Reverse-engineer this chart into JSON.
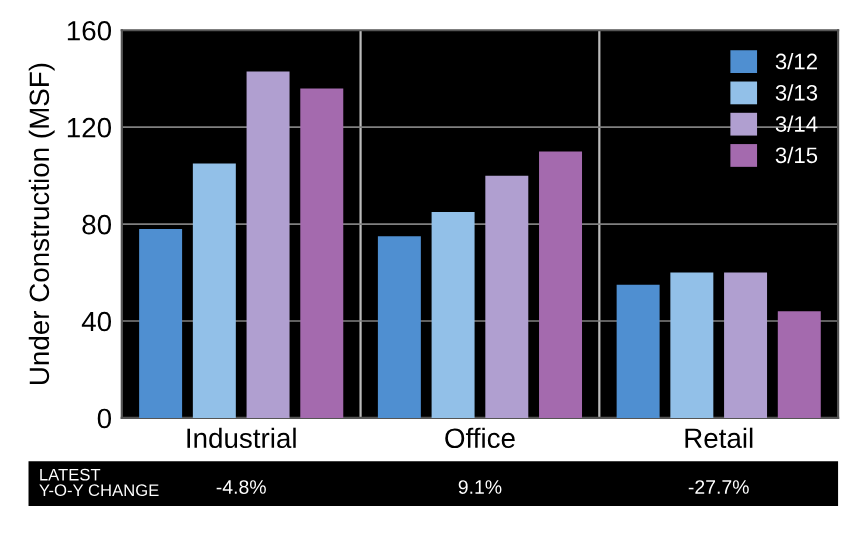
{
  "chart_data": {
    "type": "bar",
    "ylabel": "Under Construction (MSF)",
    "categories": [
      "Industrial",
      "Office",
      "Retail"
    ],
    "series": [
      {
        "name": "3/12",
        "color": "#4f8fd1",
        "values": [
          78,
          75,
          55
        ]
      },
      {
        "name": "3/13",
        "color": "#92c0e8",
        "values": [
          105,
          85,
          60
        ]
      },
      {
        "name": "3/14",
        "color": "#b09fd0",
        "values": [
          143,
          100,
          60
        ]
      },
      {
        "name": "3/15",
        "color": "#a46aae",
        "values": [
          136,
          110,
          44
        ]
      }
    ],
    "ylim": [
      0,
      160
    ],
    "yticks": [
      0,
      40,
      80,
      120,
      160
    ],
    "grid": true,
    "legend": "top right",
    "annotations": [
      "LATEST\nY-O-Y CHANGE",
      "-4.8%",
      "9.1%",
      "-27.7%"
    ]
  }
}
